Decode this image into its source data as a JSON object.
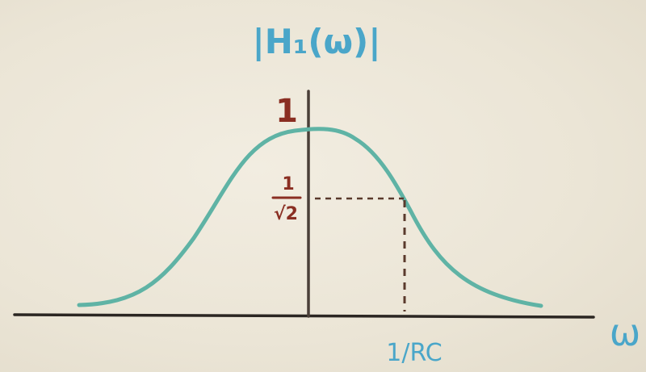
{
  "title": "|H₁(ω)|",
  "y_label_one": "1",
  "y_label_half_power_num": "1",
  "y_label_half_power_den": "√2",
  "x_tick_cutoff": "1/RC",
  "x_axis_label": "ω",
  "colors": {
    "background": "#ece6d8",
    "axis": "#2b2622",
    "curve": "#5fb3a5",
    "title": "#4aa6c9",
    "labels": "#8a2e22",
    "dashed": "#5a3a2c"
  },
  "icons": {
    "curve": "bell-shaped-magnitude-response",
    "guide": "dashed-half-power-guide"
  }
}
